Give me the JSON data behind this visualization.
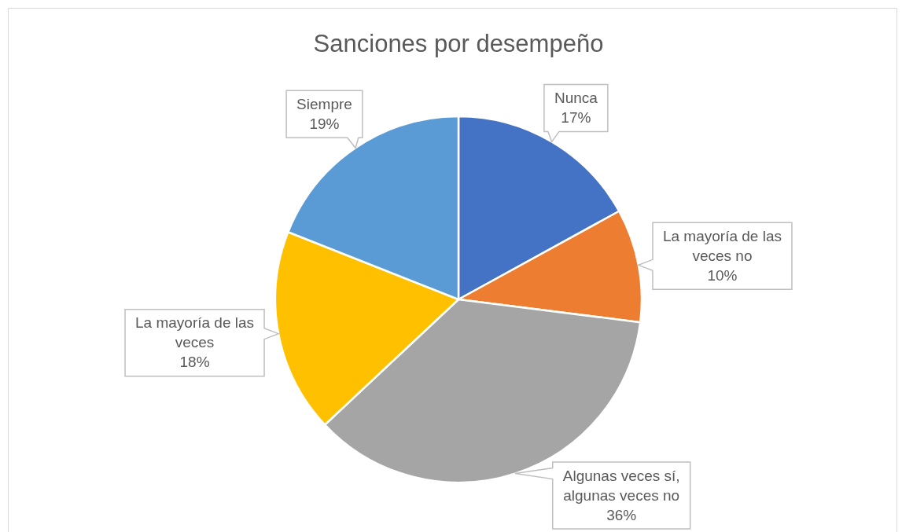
{
  "chart_data": {
    "type": "pie",
    "title": "Sanciones por desempeño",
    "categories": [
      "Nunca",
      "La mayoría de las veces no",
      "Algunas veces sí, algunas veces no",
      "La mayoría de las veces",
      "Siempre"
    ],
    "values": [
      17,
      10,
      36,
      18,
      19
    ],
    "colors": [
      "#4472c4",
      "#ed7d31",
      "#a5a5a5",
      "#ffc000",
      "#5b9bd5"
    ],
    "value_labels": [
      "17%",
      "10%",
      "36%",
      "18%",
      "19%"
    ]
  }
}
